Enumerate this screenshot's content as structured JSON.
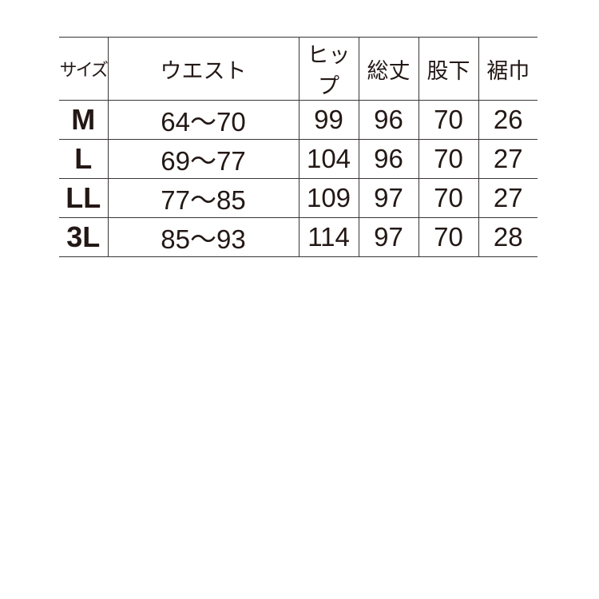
{
  "headers": [
    "サイズ",
    "ウエスト",
    "ヒップ",
    "総丈",
    "股下",
    "裾巾"
  ],
  "rows": [
    [
      "M",
      "64〜70",
      "99",
      "96",
      "70",
      "26"
    ],
    [
      "L",
      "69〜77",
      "104",
      "96",
      "70",
      "27"
    ],
    [
      "LL",
      "77〜85",
      "109",
      "97",
      "70",
      "27"
    ],
    [
      "3L",
      "85〜93",
      "114",
      "97",
      "70",
      "28"
    ]
  ]
}
